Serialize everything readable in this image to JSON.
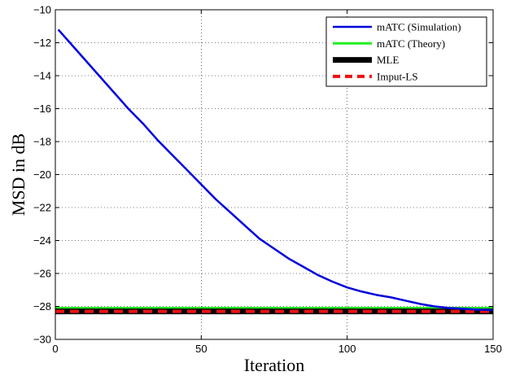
{
  "chart_data": {
    "type": "line",
    "title": "",
    "xlabel": "Iteration",
    "ylabel": "MSD in dB",
    "xlim": [
      0,
      150
    ],
    "ylim": [
      -30,
      -10
    ],
    "xticks": [
      0,
      50,
      100,
      150
    ],
    "yticks": [
      -30,
      -28,
      -26,
      -24,
      -22,
      -20,
      -18,
      -16,
      -14,
      -12,
      -10
    ],
    "xtick_labels": [
      "0",
      "50",
      "100",
      "150"
    ],
    "ytick_labels": [
      "−30",
      "−28",
      "−26",
      "−24",
      "−22",
      "−20",
      "−18",
      "−16",
      "−14",
      "−12",
      "−10"
    ],
    "grid": true,
    "legend_position": "top-right",
    "series": [
      {
        "name": "mATC (Simulation)",
        "color": "#0000dd",
        "style": "solid",
        "x": [
          1,
          5,
          10,
          15,
          20,
          25,
          30,
          35,
          40,
          45,
          50,
          55,
          60,
          65,
          70,
          75,
          80,
          85,
          90,
          95,
          100,
          105,
          110,
          115,
          120,
          125,
          130,
          135,
          140,
          145,
          150
        ],
        "y": [
          -11.2,
          -12.0,
          -13.0,
          -14.0,
          -15.0,
          -16.0,
          -16.9,
          -17.9,
          -18.8,
          -19.7,
          -20.6,
          -21.5,
          -22.3,
          -23.1,
          -23.9,
          -24.5,
          -25.1,
          -25.6,
          -26.1,
          -26.5,
          -26.85,
          -27.1,
          -27.3,
          -27.45,
          -27.65,
          -27.85,
          -28.0,
          -28.1,
          -28.15,
          -28.2,
          -28.22
        ]
      },
      {
        "name": "mATC (Theory)",
        "color": "#22ee22",
        "style": "solid",
        "x": [
          0,
          150
        ],
        "y": [
          -28.1,
          -28.1
        ]
      },
      {
        "name": "MLE",
        "color": "#000000",
        "style": "solid",
        "x": [
          0,
          150
        ],
        "y": [
          -28.3,
          -28.3
        ]
      },
      {
        "name": "Imput-LS",
        "color": "#ee1111",
        "style": "dashed",
        "x": [
          0,
          150
        ],
        "y": [
          -28.3,
          -28.3
        ]
      }
    ]
  }
}
